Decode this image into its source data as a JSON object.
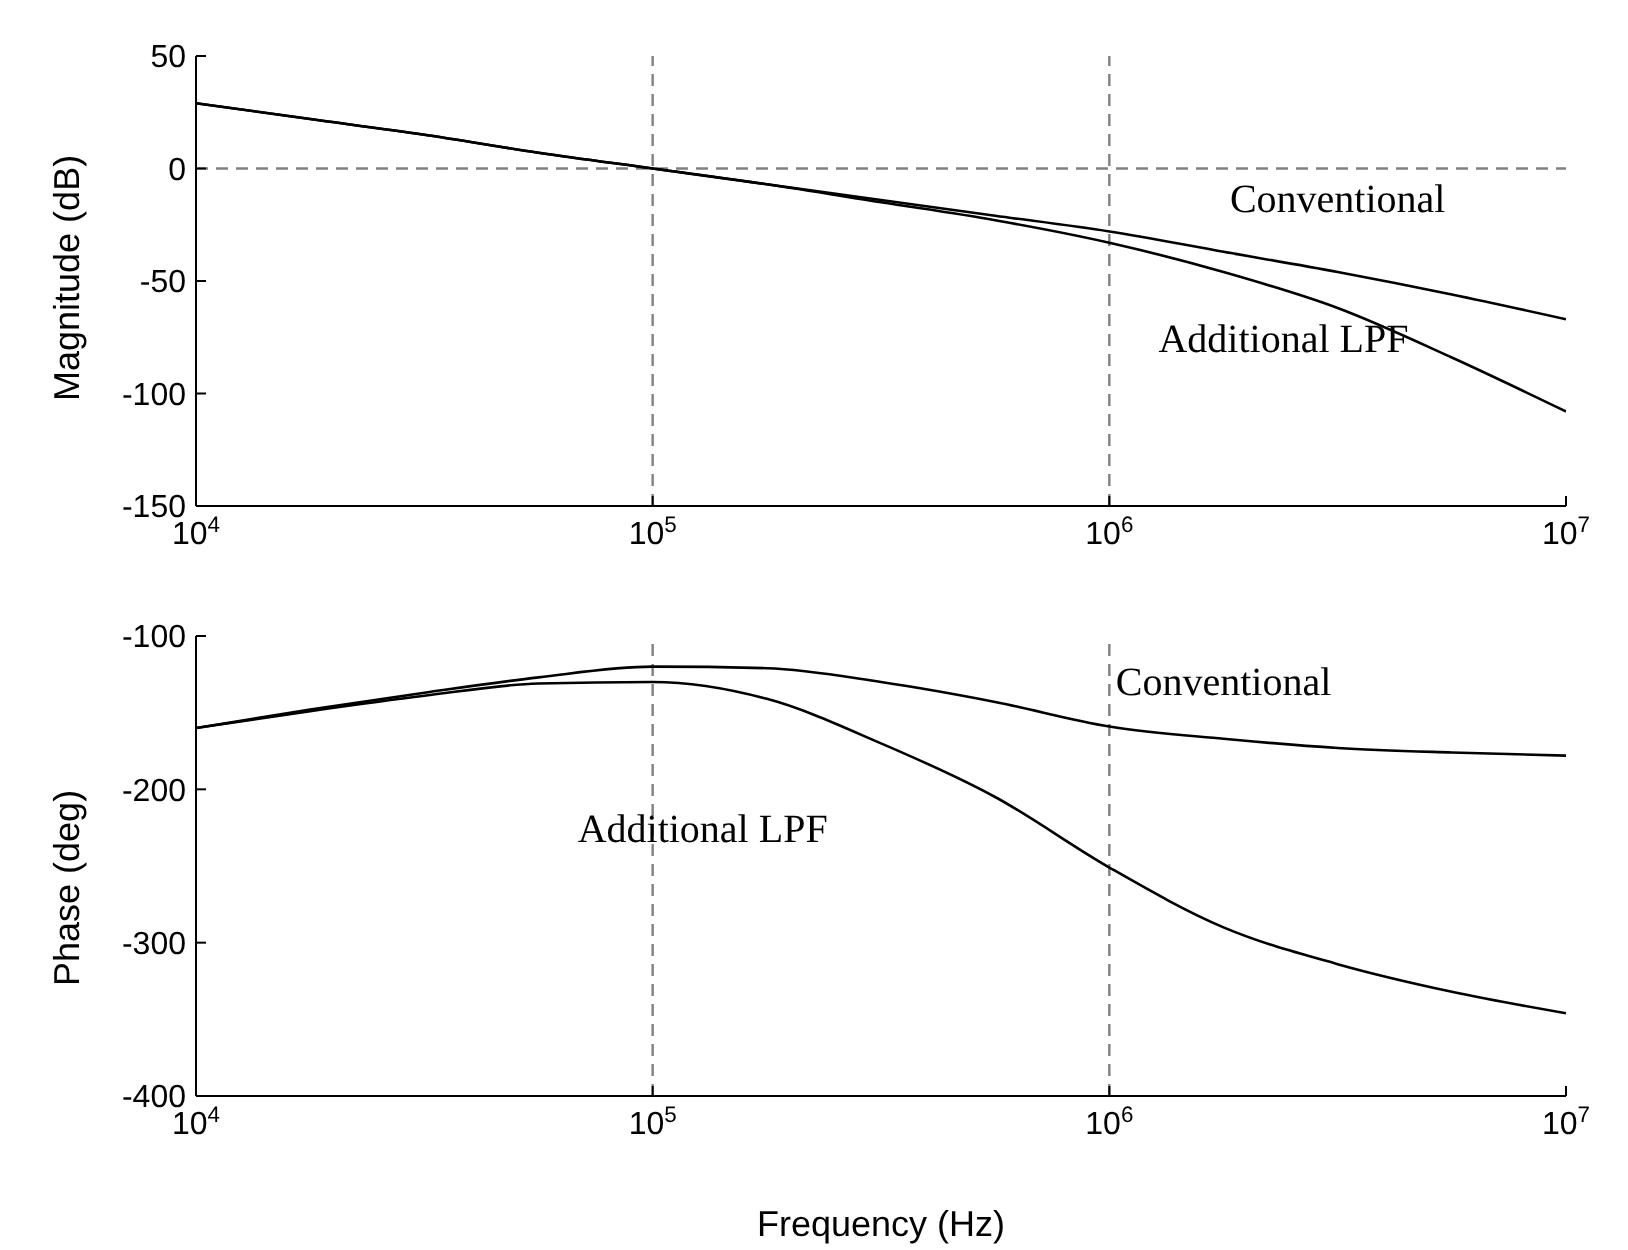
{
  "chart_data": [
    {
      "type": "line",
      "ylabel": "Magnitude (dB)",
      "log": "x",
      "grid": false,
      "legend": false,
      "line_style": "solid",
      "marker": "none",
      "x": [
        10000,
        17783,
        31623,
        56234,
        100000,
        177828,
        316228,
        562341,
        1000000,
        1778279,
        3162278,
        5623413,
        10000000
      ],
      "xlim": [
        10000,
        10000000
      ],
      "xticks": [
        {
          "value": 10000,
          "label": "10$^{4}$"
        },
        {
          "value": 100000,
          "label": "10$^{5}$"
        },
        {
          "value": 1000000,
          "label": "10$^{6}$"
        },
        {
          "value": 10000000,
          "label": "10$^{7}$"
        }
      ],
      "ylim": [
        -150,
        50
      ],
      "yticks": [
        -150,
        -100,
        -50,
        0,
        50
      ],
      "series": [
        {
          "name": "Conventional",
          "color": "#000000",
          "values": [
            29,
            22,
            15,
            7,
            0,
            -7,
            -14,
            -21,
            -28,
            -37,
            -46,
            -56,
            -67
          ]
        },
        {
          "name": "Additional LPF",
          "color": "#000000",
          "values": [
            29,
            22,
            15,
            7,
            0,
            -7,
            -15,
            -23,
            -33,
            -46,
            -62,
            -84,
            -108
          ]
        }
      ],
      "ref_lines": [
        {
          "axis": "x",
          "value": 100000,
          "color": "#808080",
          "line_style": "dashed"
        },
        {
          "axis": "x",
          "value": 1000000,
          "color": "#808080",
          "line_style": "dashed"
        },
        {
          "axis": "y",
          "value": 0,
          "color": "#808080",
          "line_style": "dashed"
        }
      ]
    },
    {
      "type": "line",
      "xlabel": "Frequency (Hz)",
      "ylabel": "Phase (deg)",
      "log": "x",
      "grid": false,
      "legend": false,
      "line_style": "solid",
      "marker": "none",
      "x": [
        10000,
        17783,
        31623,
        56234,
        100000,
        177828,
        316228,
        562341,
        1000000,
        1778279,
        3162278,
        5623413,
        10000000
      ],
      "xlim": [
        10000,
        10000000
      ],
      "xticks": [
        {
          "value": 10000,
          "label": "10$^{4}$"
        },
        {
          "value": 100000,
          "label": "10$^{5}$"
        },
        {
          "value": 1000000,
          "label": "10$^{6}$"
        },
        {
          "value": 10000000,
          "label": "10$^{7}$"
        }
      ],
      "ylim": [
        -400,
        -100
      ],
      "yticks": [
        -400,
        -300,
        -200,
        -100
      ],
      "series": [
        {
          "name": "Conventional",
          "color": "#000000",
          "values": [
            -160,
            -148,
            -137,
            -127,
            -120,
            -121,
            -130,
            -143,
            -159,
            -167,
            -173,
            -176,
            -178
          ]
        },
        {
          "name": "Additional LPF",
          "color": "#000000",
          "values": [
            -160,
            -149,
            -139,
            -131,
            -130,
            -141,
            -170,
            -205,
            -251,
            -290,
            -314,
            -332,
            -346
          ]
        }
      ],
      "ref_lines": [
        {
          "axis": "x",
          "value": 100000,
          "color": "#808080",
          "line_style": "dashed"
        },
        {
          "axis": "x",
          "value": 1000000,
          "color": "#808080",
          "line_style": "dashed"
        }
      ]
    }
  ]
}
